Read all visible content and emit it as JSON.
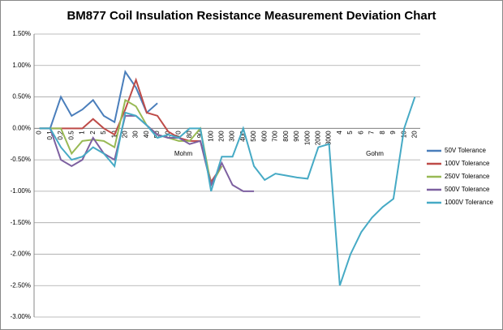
{
  "chart_data": {
    "type": "line",
    "title": "BM877 Coil Insulation Resistance Measurement Deviation Chart",
    "annotations": [
      "Mohm",
      "Gohm"
    ],
    "categories": [
      "0",
      "0.1",
      "0.2",
      "0.5",
      "1",
      "2",
      "5",
      "10",
      "20",
      "30",
      "40",
      "50",
      "60",
      "70",
      "80",
      "90",
      "100",
      "200",
      "300",
      "400",
      "500",
      "600",
      "700",
      "800",
      "900",
      "1000",
      "2000",
      "3000",
      "4",
      "5",
      "6",
      "7",
      "8",
      "9",
      "10",
      "20"
    ],
    "series": [
      {
        "name": "50V Tolerance",
        "color": "#4a7ebb",
        "values": [
          0,
          0,
          0.5,
          0.2,
          0.3,
          0.45,
          0.2,
          0.1,
          0.9,
          0.65,
          0.25,
          0.4,
          null,
          null,
          null,
          null,
          null,
          null,
          null,
          null,
          null,
          null,
          null,
          null,
          null,
          null,
          null,
          null,
          null,
          null,
          null,
          null,
          null,
          null,
          null,
          null
        ]
      },
      {
        "name": "100V Tolerance",
        "color": "#be4b48",
        "values": [
          0,
          0,
          0,
          0,
          0,
          0.15,
          0,
          -0.1,
          0.3,
          0.77,
          0.25,
          0.2,
          -0.05,
          -0.15,
          -0.2,
          -0.2,
          -0.85,
          -0.6,
          null,
          null,
          null,
          null,
          null,
          null,
          null,
          null,
          null,
          null,
          null,
          null,
          null,
          null,
          null,
          null,
          null,
          null
        ]
      },
      {
        "name": "250V Tolerance",
        "color": "#98b954",
        "values": [
          0,
          0,
          0,
          -0.4,
          -0.2,
          -0.18,
          -0.2,
          -0.3,
          0.45,
          0.35,
          0.05,
          -0.1,
          -0.15,
          -0.2,
          -0.2,
          0,
          -0.9,
          -0.6,
          null,
          null,
          null,
          null,
          null,
          null,
          null,
          null,
          null,
          null,
          null,
          null,
          null,
          null,
          null,
          null,
          null,
          null
        ]
      },
      {
        "name": "500V Tolerance",
        "color": "#7d60a0",
        "values": [
          0,
          0,
          -0.5,
          -0.6,
          -0.5,
          -0.15,
          -0.4,
          -0.5,
          0.2,
          0.2,
          0.05,
          -0.1,
          -0.15,
          -0.15,
          -0.25,
          -0.2,
          -0.9,
          -0.55,
          -0.9,
          -1,
          -1,
          null,
          null,
          null,
          null,
          null,
          null,
          null,
          null,
          null,
          null,
          null,
          null,
          null,
          null,
          null
        ]
      },
      {
        "name": "1000V Tolerance",
        "color": "#46aac5",
        "values": [
          0,
          0,
          -0.3,
          -0.5,
          -0.45,
          -0.3,
          -0.4,
          -0.6,
          0.25,
          0.2,
          0.05,
          -0.15,
          -0.1,
          -0.15,
          0,
          0,
          -1,
          -0.45,
          -0.45,
          0,
          -0.6,
          -0.82,
          -0.72,
          -0.75,
          -0.78,
          -0.8,
          -0.3,
          -0.25,
          -2.5,
          -2,
          -1.65,
          -1.42,
          -1.25,
          -1.12,
          0,
          0.5
        ]
      }
    ],
    "ylim": [
      -3,
      1.5
    ],
    "yticks": [
      {
        "value": -3,
        "label": "-3.00%"
      },
      {
        "value": -2.5,
        "label": "-2.50%"
      },
      {
        "value": -2,
        "label": "-2.00%"
      },
      {
        "value": -1.5,
        "label": "-1.50%"
      },
      {
        "value": -1,
        "label": "-1.00%"
      },
      {
        "value": -0.5,
        "label": "-0.50%"
      },
      {
        "value": 0,
        "label": "0.00%"
      },
      {
        "value": 0.5,
        "label": "0.50%"
      },
      {
        "value": 1,
        "label": "1.00%"
      },
      {
        "value": 1.5,
        "label": "1.50%"
      }
    ],
    "grid": true,
    "legend": "right"
  }
}
